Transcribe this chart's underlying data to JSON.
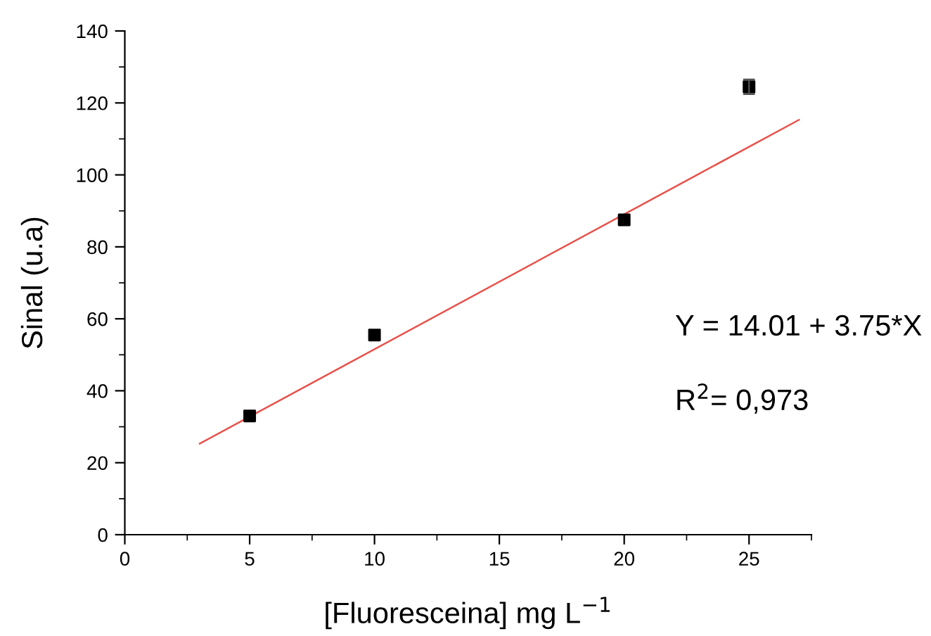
{
  "chart_data": {
    "type": "scatter",
    "xlabel": "[Fluoresceina] mg L$^{−1}$",
    "ylabel": "Sinal (u.a)",
    "x": [
      5,
      10,
      20,
      25
    ],
    "series": [
      {
        "color": "#000000",
        "values": [
          33,
          55.5,
          87.5,
          124.5
        ],
        "errors": [
          null,
          null,
          null,
          2
        ],
        "marker": "square"
      },
      {
        "type": "line",
        "color": "#e8504a",
        "x": [
          3,
          27
        ],
        "values": [
          25.3,
          115.3
        ],
        "marker": "none",
        "line_style": "solid"
      }
    ],
    "xlim": [
      0,
      27.5
    ],
    "xticks": [
      0,
      5,
      10,
      15,
      20,
      25
    ],
    "ylim": [
      0,
      140
    ],
    "yticks": [
      0,
      20,
      40,
      60,
      80,
      100,
      120,
      140
    ],
    "grid": false,
    "legend": false,
    "annotations": [
      "Y = 14.01 + 3.75*X",
      "R$^{2}$= 0,973"
    ]
  }
}
